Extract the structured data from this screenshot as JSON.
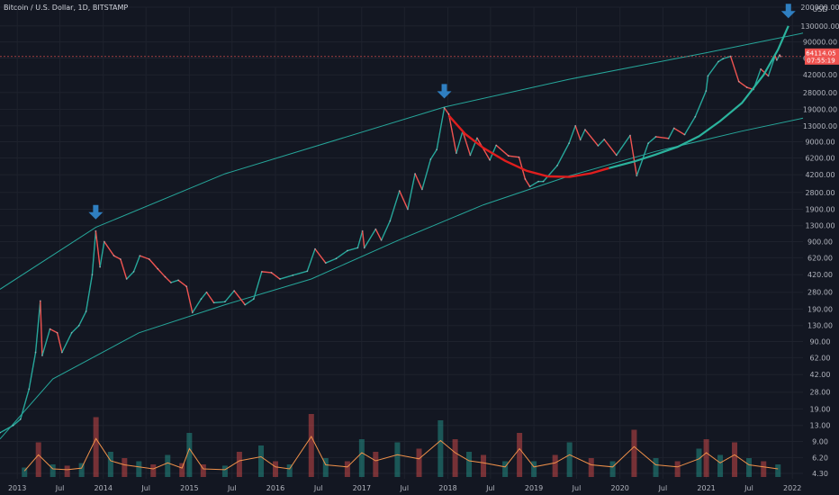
{
  "colors": {
    "background": "#131722",
    "grid": "#1e222d",
    "text": "#b2b5be",
    "up": "#26a69a",
    "down": "#ef5350",
    "channel": "#26a69a",
    "arrow": "#2f7fc1",
    "red_curve": "#e01e1e",
    "green_curve": "#2bb39d",
    "price_tag": "#ef5350",
    "volume_ma": "#f0914a"
  },
  "chart_data": {
    "type": "line",
    "title": "Bitcoin / U.S. Dollar, 1D, BITSTAMP",
    "currency": "USD",
    "yscale": "log",
    "ylim": [
      3.8,
      200000
    ],
    "xlim": [
      "2012-10-20",
      "2022-02-15"
    ],
    "last_price": "64114.05",
    "countdown": "07:55:19",
    "x_ticks": [
      {
        "label": "2013",
        "date": "2013-01-01"
      },
      {
        "label": "Jul",
        "date": "2013-07-01"
      },
      {
        "label": "2014",
        "date": "2014-01-01"
      },
      {
        "label": "Jul",
        "date": "2014-07-01"
      },
      {
        "label": "2015",
        "date": "2015-01-01"
      },
      {
        "label": "Jul",
        "date": "2015-07-01"
      },
      {
        "label": "2016",
        "date": "2016-01-01"
      },
      {
        "label": "Jul",
        "date": "2016-07-01"
      },
      {
        "label": "2017",
        "date": "2017-01-01"
      },
      {
        "label": "Jul",
        "date": "2017-07-01"
      },
      {
        "label": "2018",
        "date": "2018-01-01"
      },
      {
        "label": "Jul",
        "date": "2018-07-01"
      },
      {
        "label": "2019",
        "date": "2019-01-01"
      },
      {
        "label": "Jul",
        "date": "2019-07-01"
      },
      {
        "label": "2020",
        "date": "2020-01-01"
      },
      {
        "label": "Jul",
        "date": "2020-07-01"
      },
      {
        "label": "2021",
        "date": "2021-01-01"
      },
      {
        "label": "Jul",
        "date": "2021-07-01"
      },
      {
        "label": "2022",
        "date": "2022-01-01"
      }
    ],
    "y_ticks": [
      "200000.00",
      "130000.00",
      "90000.00",
      "62000.00",
      "42000.00",
      "28000.00",
      "19000.00",
      "13000.00",
      "9000.00",
      "6200.00",
      "4200.00",
      "2800.00",
      "1900.00",
      "1300.00",
      "900.00",
      "620.00",
      "420.00",
      "280.00",
      "190.00",
      "130.00",
      "90.00",
      "62.00",
      "42.00",
      "28.00",
      "19.00",
      "13.00",
      "9.00",
      "6.20",
      "4.30"
    ],
    "series": [
      {
        "values": [
          [
            "2012-10-20",
            11
          ],
          [
            "2012-12-15",
            13
          ],
          [
            "2013-01-15",
            15
          ],
          [
            "2013-02-20",
            30
          ],
          [
            "2013-03-20",
            70
          ],
          [
            "2013-04-09",
            230
          ],
          [
            "2013-04-17",
            65
          ],
          [
            "2013-05-20",
            120
          ],
          [
            "2013-06-20",
            110
          ],
          [
            "2013-07-10",
            70
          ],
          [
            "2013-08-20",
            110
          ],
          [
            "2013-09-20",
            130
          ],
          [
            "2013-10-20",
            180
          ],
          [
            "2013-11-15",
            420
          ],
          [
            "2013-11-30",
            1150
          ],
          [
            "2013-12-18",
            500
          ],
          [
            "2014-01-05",
            900
          ],
          [
            "2014-02-15",
            650
          ],
          [
            "2014-03-15",
            600
          ],
          [
            "2014-04-10",
            380
          ],
          [
            "2014-05-10",
            450
          ],
          [
            "2014-06-05",
            650
          ],
          [
            "2014-07-15",
            600
          ],
          [
            "2014-08-20",
            480
          ],
          [
            "2014-09-20",
            400
          ],
          [
            "2014-10-15",
            350
          ],
          [
            "2014-11-15",
            370
          ],
          [
            "2014-12-20",
            320
          ],
          [
            "2015-01-14",
            175
          ],
          [
            "2015-02-20",
            240
          ],
          [
            "2015-03-15",
            280
          ],
          [
            "2015-04-15",
            220
          ],
          [
            "2015-06-01",
            225
          ],
          [
            "2015-07-10",
            290
          ],
          [
            "2015-08-25",
            210
          ],
          [
            "2015-10-01",
            240
          ],
          [
            "2015-11-04",
            450
          ],
          [
            "2015-12-15",
            440
          ],
          [
            "2016-01-20",
            380
          ],
          [
            "2016-03-15",
            415
          ],
          [
            "2016-05-15",
            455
          ],
          [
            "2016-06-17",
            760
          ],
          [
            "2016-08-01",
            550
          ],
          [
            "2016-09-15",
            610
          ],
          [
            "2016-11-01",
            730
          ],
          [
            "2016-12-15",
            780
          ],
          [
            "2017-01-04",
            1150
          ],
          [
            "2017-01-12",
            780
          ],
          [
            "2017-03-01",
            1200
          ],
          [
            "2017-03-25",
            930
          ],
          [
            "2017-05-01",
            1450
          ],
          [
            "2017-06-10",
            2900
          ],
          [
            "2017-07-15",
            1900
          ],
          [
            "2017-08-15",
            4300
          ],
          [
            "2017-09-14",
            3000
          ],
          [
            "2017-10-20",
            6000
          ],
          [
            "2017-11-15",
            7500
          ],
          [
            "2017-12-17",
            19600
          ],
          [
            "2018-01-05",
            17000
          ],
          [
            "2018-02-06",
            6900
          ],
          [
            "2018-03-05",
            11500
          ],
          [
            "2018-04-06",
            6600
          ],
          [
            "2018-05-05",
            9800
          ],
          [
            "2018-06-28",
            5900
          ],
          [
            "2018-07-25",
            8300
          ],
          [
            "2018-09-15",
            6500
          ],
          [
            "2018-10-30",
            6300
          ],
          [
            "2018-11-25",
            3800
          ],
          [
            "2018-12-15",
            3200
          ],
          [
            "2019-01-20",
            3600
          ],
          [
            "2019-02-10",
            3600
          ],
          [
            "2019-04-10",
            5200
          ],
          [
            "2019-05-30",
            8700
          ],
          [
            "2019-06-26",
            13000
          ],
          [
            "2019-07-17",
            9400
          ],
          [
            "2019-08-06",
            11900
          ],
          [
            "2019-09-30",
            8200
          ],
          [
            "2019-10-26",
            9500
          ],
          [
            "2019-12-17",
            6600
          ],
          [
            "2020-02-13",
            10400
          ],
          [
            "2020-03-12",
            4100
          ],
          [
            "2020-04-30",
            8700
          ],
          [
            "2020-06-01",
            10100
          ],
          [
            "2020-07-25",
            9700
          ],
          [
            "2020-08-17",
            12300
          ],
          [
            "2020-10-01",
            10600
          ],
          [
            "2020-11-15",
            16000
          ],
          [
            "2020-12-31",
            29000
          ],
          [
            "2021-01-08",
            41000
          ],
          [
            "2021-02-21",
            57000
          ],
          [
            "2021-03-13",
            61000
          ],
          [
            "2021-04-14",
            64500
          ],
          [
            "2021-05-19",
            36000
          ],
          [
            "2021-06-22",
            31500
          ],
          [
            "2021-07-20",
            30000
          ],
          [
            "2021-08-20",
            48000
          ],
          [
            "2021-09-21",
            41000
          ],
          [
            "2021-10-20",
            65000
          ],
          [
            "2021-10-27",
            59000
          ],
          [
            "2021-11-08",
            66500
          ],
          [
            "2021-11-12",
            64114
          ]
        ]
      }
    ],
    "volume": [
      [
        "2013-02",
        15
      ],
      [
        "2013-04",
        55
      ],
      [
        "2013-06",
        20
      ],
      [
        "2013-08",
        18
      ],
      [
        "2013-10",
        22
      ],
      [
        "2013-12",
        95
      ],
      [
        "2014-02",
        40
      ],
      [
        "2014-04",
        30
      ],
      [
        "2014-06",
        25
      ],
      [
        "2014-08",
        20
      ],
      [
        "2014-10",
        35
      ],
      [
        "2014-12",
        22
      ],
      [
        "2015-01",
        70
      ],
      [
        "2015-03",
        20
      ],
      [
        "2015-06",
        18
      ],
      [
        "2015-08",
        40
      ],
      [
        "2015-11",
        50
      ],
      [
        "2016-01",
        25
      ],
      [
        "2016-03",
        20
      ],
      [
        "2016-06",
        100
      ],
      [
        "2016-08",
        30
      ],
      [
        "2016-11",
        25
      ],
      [
        "2017-01",
        60
      ],
      [
        "2017-03",
        40
      ],
      [
        "2017-06",
        55
      ],
      [
        "2017-09",
        45
      ],
      [
        "2017-12",
        90
      ],
      [
        "2018-02",
        60
      ],
      [
        "2018-04",
        40
      ],
      [
        "2018-06",
        35
      ],
      [
        "2018-09",
        25
      ],
      [
        "2018-11",
        70
      ],
      [
        "2019-01",
        25
      ],
      [
        "2019-04",
        35
      ],
      [
        "2019-06",
        55
      ],
      [
        "2019-09",
        30
      ],
      [
        "2019-12",
        25
      ],
      [
        "2020-03",
        75
      ],
      [
        "2020-06",
        30
      ],
      [
        "2020-09",
        25
      ],
      [
        "2020-12",
        45
      ],
      [
        "2021-01",
        60
      ],
      [
        "2021-03",
        35
      ],
      [
        "2021-05",
        55
      ],
      [
        "2021-07",
        30
      ],
      [
        "2021-09",
        25
      ],
      [
        "2021-11",
        20
      ]
    ],
    "channel_upper": [
      [
        "2012-10-20",
        300
      ],
      [
        "2013-11-30",
        1250
      ],
      [
        "2015-06-01",
        4300
      ],
      [
        "2017-12-17",
        20000
      ],
      [
        "2019-06-01",
        38000
      ],
      [
        "2021-01-01",
        70000
      ],
      [
        "2022-02-15",
        110000
      ]
    ],
    "channel_lower": [
      [
        "2012-10-20",
        9.5
      ],
      [
        "2013-06-01",
        38
      ],
      [
        "2014-06-01",
        110
      ],
      [
        "2015-06-01",
        210
      ],
      [
        "2016-06-01",
        380
      ],
      [
        "2017-06-01",
        920
      ],
      [
        "2018-06-01",
        2100
      ],
      [
        "2019-06-01",
        4100
      ],
      [
        "2020-06-01",
        7200
      ],
      [
        "2021-06-01",
        11500
      ],
      [
        "2022-02-15",
        15500
      ]
    ],
    "red_curve": [
      [
        "2018-01-05",
        16500
      ],
      [
        "2018-03-15",
        10800
      ],
      [
        "2018-06-01",
        7800
      ],
      [
        "2018-09-01",
        5800
      ],
      [
        "2018-12-01",
        4600
      ],
      [
        "2019-03-01",
        4050
      ],
      [
        "2019-06-01",
        4000
      ],
      [
        "2019-09-01",
        4350
      ],
      [
        "2019-11-15",
        4900
      ]
    ],
    "green_curve": [
      [
        "2019-11-15",
        4900
      ],
      [
        "2020-03-01",
        5700
      ],
      [
        "2020-06-01",
        6700
      ],
      [
        "2020-09-01",
        8000
      ],
      [
        "2020-12-01",
        10200
      ],
      [
        "2021-03-01",
        14500
      ],
      [
        "2021-06-01",
        22000
      ],
      [
        "2021-09-01",
        42000
      ],
      [
        "2021-11-01",
        75000
      ],
      [
        "2021-12-15",
        130000
      ]
    ],
    "arrows": [
      [
        "2013-11-30",
        1600
      ],
      [
        "2017-12-17",
        26000
      ],
      [
        "2021-12-15",
        165000
      ]
    ]
  }
}
